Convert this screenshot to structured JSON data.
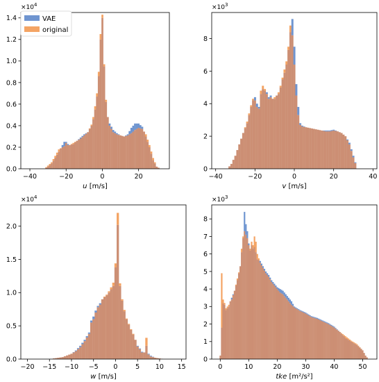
{
  "colors": {
    "vae": "#6f95d0",
    "original": "#f4a464",
    "overlap": "#cc8f74"
  },
  "legend": {
    "vae": "VAE",
    "original": "original"
  },
  "chart_data": [
    {
      "type": "histogram",
      "xlabel": {
        "var": "u",
        "unit": "[m/s]"
      },
      "multiplier": {
        "base": "×10",
        "exp": "4"
      },
      "xlim": [
        -45,
        37
      ],
      "ylim": [
        0,
        1.45
      ],
      "xticks": [
        -40,
        -20,
        0,
        20
      ],
      "yticks": [
        0.0,
        0.2,
        0.4,
        0.6,
        0.8,
        1.0,
        1.2,
        1.4
      ],
      "bin_width": 1,
      "x": [
        -32,
        -30,
        -28,
        -26,
        -24,
        -22,
        -21,
        -20,
        -19,
        -18,
        -16,
        -14,
        -12,
        -10,
        -8,
        -6,
        -5,
        -4,
        -3,
        -2,
        -1,
        0,
        1,
        2,
        3,
        4,
        5,
        6,
        8,
        10,
        12,
        14,
        16,
        18,
        20,
        22,
        24,
        26,
        28,
        30,
        32
      ],
      "series": [
        {
          "name": "VAE",
          "values": [
            0,
            0.02,
            0.05,
            0.1,
            0.16,
            0.22,
            0.25,
            0.25,
            0.23,
            0.22,
            0.23,
            0.26,
            0.29,
            0.32,
            0.34,
            0.4,
            0.46,
            0.55,
            0.67,
            0.86,
            1.2,
            1.4,
            0.95,
            0.62,
            0.48,
            0.42,
            0.39,
            0.36,
            0.33,
            0.31,
            0.3,
            0.32,
            0.38,
            0.42,
            0.42,
            0.39,
            0.3,
            0.2,
            0.08,
            0.02,
            0
          ]
        },
        {
          "name": "original",
          "values": [
            0,
            0.03,
            0.06,
            0.12,
            0.18,
            0.2,
            0.21,
            0.24,
            0.22,
            0.22,
            0.24,
            0.26,
            0.28,
            0.31,
            0.34,
            0.41,
            0.48,
            0.58,
            0.7,
            0.9,
            1.25,
            1.43,
            0.97,
            0.64,
            0.48,
            0.4,
            0.37,
            0.34,
            0.32,
            0.31,
            0.3,
            0.31,
            0.33,
            0.36,
            0.38,
            0.37,
            0.32,
            0.22,
            0.1,
            0.02,
            0
          ]
        }
      ]
    },
    {
      "type": "histogram",
      "xlabel": {
        "var": "v",
        "unit": "[m/s]"
      },
      "multiplier": {
        "base": "×10",
        "exp": "3"
      },
      "xlim": [
        -42,
        42
      ],
      "ylim": [
        0,
        9.6
      ],
      "xticks": [
        -40,
        -20,
        0,
        20,
        40
      ],
      "yticks": [
        0,
        2,
        4,
        6,
        8
      ],
      "bin_width": 1,
      "x": [
        -34,
        -32,
        -30,
        -28,
        -26,
        -24,
        -23,
        -22,
        -21,
        -20,
        -19,
        -18,
        -17,
        -16,
        -15,
        -14,
        -13,
        -12,
        -11,
        -10,
        -9,
        -8,
        -7,
        -6,
        -5,
        -4,
        -3,
        -2,
        -1,
        0,
        1,
        2,
        3,
        4,
        6,
        8,
        10,
        12,
        14,
        16,
        18,
        20,
        22,
        24,
        26,
        28,
        30,
        32
      ],
      "series": [
        {
          "name": "VAE",
          "values": [
            0,
            0.3,
            0.8,
            1.5,
            2.2,
            2.8,
            3.3,
            3.8,
            4.2,
            4.4,
            4.0,
            3.8,
            4.6,
            4.9,
            4.8,
            4.7,
            4.4,
            4.5,
            4.3,
            4.3,
            4.5,
            4.6,
            5.0,
            5.5,
            5.9,
            6.4,
            7.3,
            8.4,
            9.2,
            7.5,
            5.2,
            3.8,
            2.8,
            2.65,
            2.55,
            2.5,
            2.45,
            2.4,
            2.35,
            2.35,
            2.35,
            2.4,
            2.3,
            2.2,
            2.0,
            1.6,
            0.8,
            0
          ]
        },
        {
          "name": "original",
          "values": [
            0,
            0.3,
            0.8,
            1.5,
            2.2,
            2.9,
            3.4,
            3.9,
            4.3,
            4.2,
            3.8,
            3.7,
            4.8,
            5.1,
            4.9,
            4.6,
            4.3,
            4.4,
            4.3,
            4.4,
            4.5,
            4.7,
            5.1,
            5.6,
            6.1,
            6.6,
            7.5,
            8.8,
            8.2,
            6.4,
            4.5,
            3.3,
            2.7,
            2.6,
            2.55,
            2.5,
            2.45,
            2.4,
            2.35,
            2.3,
            2.3,
            2.35,
            2.3,
            2.2,
            2.0,
            1.5,
            0.7,
            0
          ]
        }
      ]
    },
    {
      "type": "histogram",
      "xlabel": {
        "var": "w",
        "unit": "[m/s]"
      },
      "multiplier": {
        "base": "×10",
        "exp": "4"
      },
      "xlim": [
        -21.5,
        16
      ],
      "ylim": [
        0,
        2.32
      ],
      "xticks": [
        -20,
        -15,
        -10,
        -5,
        0,
        5,
        10,
        15
      ],
      "yticks": [
        0.0,
        0.5,
        1.0,
        1.5,
        2.0
      ],
      "bin_width": 0.5,
      "x": [
        -14,
        -12,
        -10,
        -9,
        -8,
        -7,
        -6,
        -5.5,
        -5,
        -4.5,
        -4,
        -3.5,
        -3,
        -2.5,
        -2,
        -1.5,
        -1,
        -0.5,
        0,
        0.5,
        1,
        1.5,
        2,
        2.5,
        3,
        3.5,
        4,
        4.5,
        5,
        5.5,
        6,
        6.5,
        7,
        7.5,
        8,
        9,
        10,
        11
      ],
      "series": [
        {
          "name": "VAE",
          "values": [
            0.01,
            0.03,
            0.08,
            0.13,
            0.2,
            0.29,
            0.4,
            0.58,
            0.64,
            0.73,
            0.8,
            0.84,
            0.9,
            0.93,
            0.96,
            1.0,
            1.05,
            1.1,
            1.38,
            2.02,
            1.1,
            0.88,
            0.72,
            0.6,
            0.52,
            0.44,
            0.37,
            0.29,
            0.2,
            0.16,
            0.11,
            0.1,
            0.2,
            0.08,
            0.05,
            0.02,
            0.01,
            0
          ]
        },
        {
          "name": "original",
          "values": [
            0.01,
            0.03,
            0.08,
            0.12,
            0.18,
            0.27,
            0.38,
            0.55,
            0.6,
            0.7,
            0.78,
            0.82,
            0.9,
            0.94,
            0.97,
            1.02,
            1.08,
            1.15,
            1.44,
            2.2,
            1.14,
            0.9,
            0.74,
            0.61,
            0.53,
            0.45,
            0.38,
            0.29,
            0.19,
            0.15,
            0.1,
            0.1,
            0.32,
            0.07,
            0.04,
            0.02,
            0.01,
            0
          ]
        }
      ]
    },
    {
      "type": "histogram",
      "xlabel": {
        "var": "tke",
        "unit": "[m²/s²]"
      },
      "multiplier": {
        "base": "×10",
        "exp": "3"
      },
      "xlim": [
        -3,
        55
      ],
      "ylim": [
        0,
        8.8
      ],
      "xticks": [
        0,
        10,
        20,
        30,
        40,
        50
      ],
      "yticks": [
        0,
        1,
        2,
        3,
        4,
        5,
        6,
        7,
        8
      ],
      "bin_width": 0.5,
      "x": [
        0,
        0.5,
        1,
        1.5,
        2,
        2.5,
        3,
        3.5,
        4,
        5,
        6,
        7,
        7.5,
        8,
        8.5,
        9,
        9.5,
        10,
        10.5,
        11,
        11.5,
        12,
        12.5,
        13,
        14,
        15,
        16,
        17,
        18,
        19,
        20,
        21,
        22,
        23,
        24,
        25,
        26,
        27,
        28,
        30,
        32,
        34,
        36,
        38,
        40,
        42,
        44,
        46,
        48,
        50,
        51,
        52
      ],
      "series": [
        {
          "name": "VAE",
          "values": [
            0.2,
            1.8,
            3.2,
            3.1,
            2.8,
            2.9,
            3.0,
            3.3,
            3.5,
            3.9,
            4.5,
            5.3,
            6.1,
            6.9,
            8.4,
            7.7,
            7.3,
            6.6,
            6.2,
            6.5,
            6.3,
            6.4,
            6.1,
            5.7,
            5.6,
            5.3,
            5.0,
            4.8,
            4.5,
            4.3,
            4.1,
            4.0,
            3.9,
            3.7,
            3.5,
            3.3,
            3.0,
            2.9,
            2.8,
            2.65,
            2.45,
            2.35,
            2.2,
            2.05,
            1.85,
            1.55,
            1.2,
            1.0,
            0.8,
            0.5,
            0.2,
            0
          ]
        },
        {
          "name": "original",
          "values": [
            0.2,
            4.9,
            3.4,
            3.2,
            2.9,
            3.0,
            3.1,
            3.3,
            3.4,
            3.9,
            4.6,
            5.3,
            6.3,
            7.0,
            7.3,
            7.1,
            6.9,
            6.5,
            6.3,
            6.7,
            6.5,
            7.0,
            6.7,
            6.0,
            5.5,
            5.2,
            4.9,
            4.7,
            4.4,
            4.2,
            4.0,
            3.8,
            3.7,
            3.5,
            3.3,
            3.1,
            2.95,
            2.85,
            2.75,
            2.6,
            2.4,
            2.3,
            2.15,
            2.0,
            1.8,
            1.55,
            1.3,
            1.05,
            0.85,
            0.5,
            0.2,
            0
          ]
        }
      ]
    }
  ]
}
